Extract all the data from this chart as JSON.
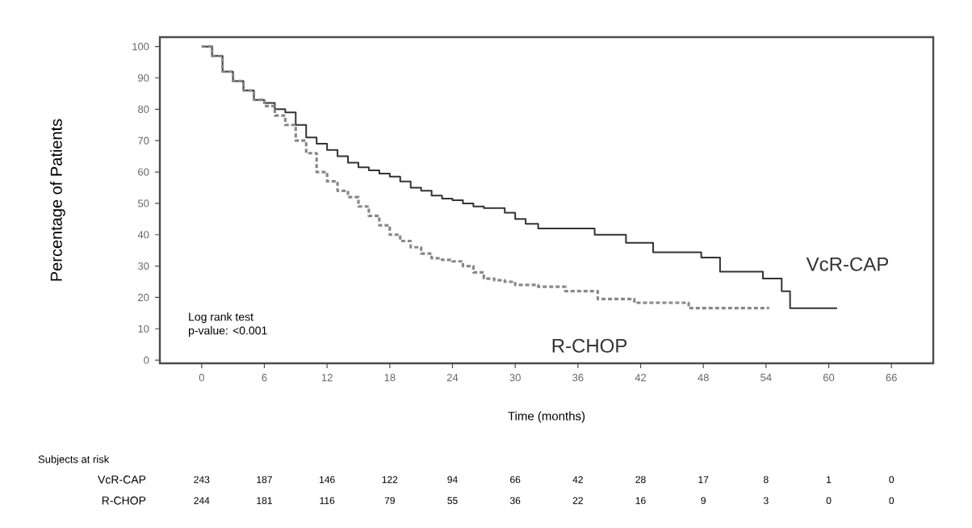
{
  "chart_data": {
    "type": "step",
    "xlabel": "Time (months)",
    "ylabel": "Percentage of Patients",
    "xlim": [
      -4,
      70
    ],
    "ylim": [
      -1,
      103
    ],
    "xticks": [
      0,
      6,
      12,
      18,
      24,
      30,
      36,
      42,
      48,
      54,
      60,
      66
    ],
    "yticks": [
      0,
      10,
      20,
      30,
      40,
      50,
      60,
      70,
      80,
      90,
      100
    ],
    "series": [
      {
        "name": "VcR-CAP",
        "color": "#333333",
        "line_style": "solid",
        "x": [
          0,
          1,
          2,
          3,
          4,
          5,
          6,
          7,
          8,
          9,
          10,
          11,
          12,
          13,
          14,
          15,
          16,
          17,
          18,
          19,
          20,
          21,
          22,
          23,
          24,
          25,
          26,
          27,
          29,
          30,
          31,
          32.2,
          37.6,
          40.6,
          43.2,
          47.8,
          49.6,
          53.7,
          55.5,
          56.3,
          60.8
        ],
        "values": [
          100,
          97,
          92,
          89,
          86,
          83,
          82,
          80,
          79,
          75,
          71,
          69,
          67,
          65,
          63,
          61.5,
          60.5,
          59.5,
          58.5,
          57,
          55,
          54,
          52.5,
          51.5,
          51,
          50,
          49,
          48.5,
          47,
          45,
          43.5,
          42,
          40,
          37.4,
          34.4,
          32.7,
          28.2,
          26,
          22,
          16.6,
          16.6
        ]
      },
      {
        "name": "R-CHOP",
        "color": "#888888",
        "line_style": "dashed",
        "x": [
          0,
          1,
          2,
          3,
          4,
          5,
          6,
          7,
          8,
          9,
          10,
          11,
          12,
          13,
          14,
          15,
          16,
          17,
          18,
          19,
          20,
          21,
          22,
          23,
          24,
          25,
          26,
          27,
          28,
          29,
          30,
          32.2,
          34.8,
          37.9,
          41.4,
          46.6,
          54.3
        ],
        "values": [
          100,
          97,
          92,
          89,
          86,
          83,
          81,
          78,
          75,
          70,
          66,
          60,
          57,
          54,
          52,
          49,
          46,
          43,
          40,
          38,
          36,
          34,
          32.5,
          32,
          31.5,
          30,
          28,
          26,
          25.5,
          25,
          24,
          23.4,
          22,
          19.5,
          18.3,
          16.6,
          16.6
        ]
      }
    ],
    "annotations": [
      "Log rank test",
      "p-value: <0.001",
      "Subjects at risk",
      "VcR-CAP",
      "243",
      "187",
      "146",
      "122",
      "94",
      "66",
      "42",
      "28",
      "17",
      "8",
      "1",
      "0",
      "R-CHOP",
      "244",
      "181",
      "116",
      "79",
      "55",
      "36",
      "22",
      "16",
      "9",
      "3",
      "0",
      "0"
    ]
  }
}
